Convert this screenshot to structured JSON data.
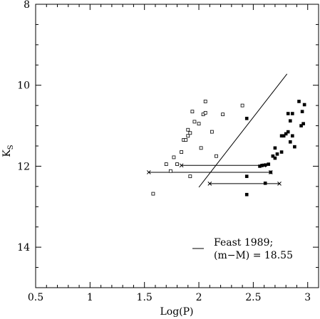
{
  "chart_data": {
    "type": "scatter",
    "xlabel": "Log(P)",
    "ylabel_main": "K",
    "ylabel_sub": "S",
    "xlim": [
      0.5,
      3.1
    ],
    "ylim": [
      15,
      8
    ],
    "y_inverted": true,
    "xticks": [
      0.5,
      1,
      1.5,
      2,
      2.5,
      3
    ],
    "xtick_labels": [
      "0.5",
      "1",
      "1.5",
      "2",
      "2.5",
      "3"
    ],
    "yticks": [
      8,
      10,
      12,
      14
    ],
    "ytick_labels": [
      "8",
      "10",
      "12",
      "14"
    ],
    "legend": {
      "line1": "Feast 1989;",
      "line2": "(m−M) = 18.55",
      "placement": "bottom-right"
    },
    "series": [
      {
        "marker": "open-square",
        "points": [
          [
            1.58,
            12.68
          ],
          [
            1.7,
            11.95
          ],
          [
            1.74,
            12.12
          ],
          [
            1.77,
            11.78
          ],
          [
            1.8,
            11.95
          ],
          [
            1.84,
            11.65
          ],
          [
            1.86,
            11.35
          ],
          [
            1.88,
            11.35
          ],
          [
            1.9,
            11.1
          ],
          [
            1.9,
            11.25
          ],
          [
            1.92,
            11.18
          ],
          [
            1.92,
            12.25
          ],
          [
            1.94,
            10.65
          ],
          [
            1.96,
            10.9
          ],
          [
            2.0,
            10.95
          ],
          [
            2.02,
            11.55
          ],
          [
            2.04,
            10.72
          ],
          [
            2.06,
            10.4
          ],
          [
            2.06,
            10.68
          ],
          [
            2.12,
            11.15
          ],
          [
            2.16,
            11.75
          ],
          [
            2.22,
            10.72
          ],
          [
            2.4,
            10.5
          ]
        ]
      },
      {
        "marker": "filled-square",
        "points": [
          [
            2.44,
            10.82
          ],
          [
            2.44,
            12.25
          ],
          [
            2.44,
            12.7
          ],
          [
            2.56,
            12.0
          ],
          [
            2.58,
            11.98
          ],
          [
            2.61,
            11.97
          ],
          [
            2.61,
            12.42
          ],
          [
            2.64,
            11.95
          ],
          [
            2.66,
            12.15
          ],
          [
            2.68,
            11.75
          ],
          [
            2.7,
            11.55
          ],
          [
            2.7,
            11.8
          ],
          [
            2.72,
            11.7
          ],
          [
            2.76,
            11.25
          ],
          [
            2.76,
            11.65
          ],
          [
            2.78,
            11.25
          ],
          [
            2.8,
            11.2
          ],
          [
            2.82,
            10.7
          ],
          [
            2.82,
            11.15
          ],
          [
            2.84,
            10.88
          ],
          [
            2.84,
            11.4
          ],
          [
            2.86,
            10.7
          ],
          [
            2.86,
            11.25
          ],
          [
            2.88,
            11.52
          ],
          [
            2.92,
            10.4
          ],
          [
            2.94,
            11.0
          ],
          [
            2.95,
            10.65
          ],
          [
            2.96,
            10.95
          ],
          [
            2.97,
            10.48
          ]
        ]
      }
    ],
    "error_bars": [
      {
        "y": 11.98,
        "x_low": 1.84,
        "x_high": 2.6
      },
      {
        "y": 12.15,
        "x_low": 1.54,
        "x_high": 2.66
      },
      {
        "y": 12.43,
        "x_low": 2.1,
        "x_high": 2.74
      }
    ],
    "relation_line": {
      "x": [
        2.0,
        2.81
      ],
      "y": [
        12.52,
        9.72
      ]
    }
  }
}
